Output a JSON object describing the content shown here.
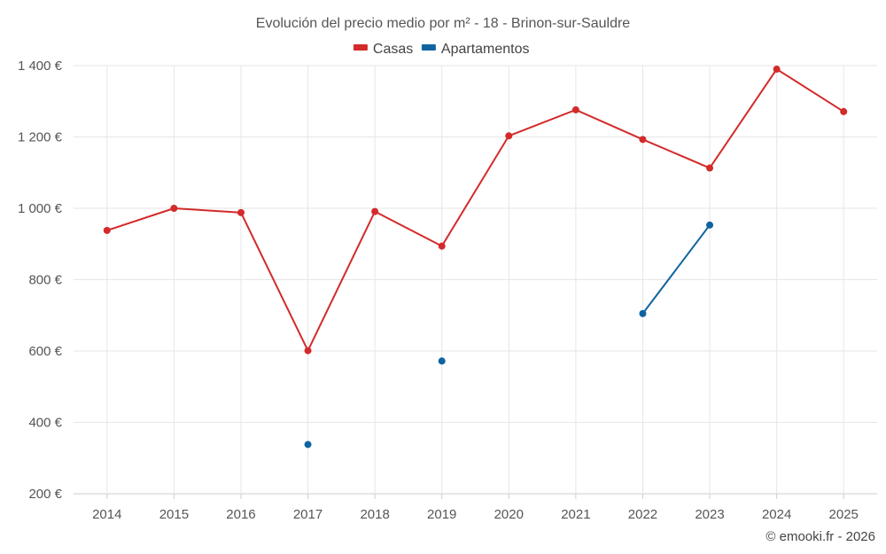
{
  "chart_data": {
    "type": "line",
    "title": "Evolución del precio medio por m² - 18 - Brinon-sur-Sauldre",
    "categories": [
      "2014",
      "2015",
      "2016",
      "2017",
      "2018",
      "2019",
      "2020",
      "2021",
      "2022",
      "2023",
      "2024",
      "2025"
    ],
    "ylim": [
      200,
      1400
    ],
    "yticks": [
      200,
      400,
      600,
      800,
      1000,
      1200,
      1400
    ],
    "ytick_labels": [
      "200 €",
      "400 €",
      "600 €",
      "800 €",
      "1 000 €",
      "1 200 €",
      "1 400 €"
    ],
    "grid": true,
    "legend_position": "top-center",
    "series": [
      {
        "name": "Casas",
        "color": "#d32a2a",
        "values": [
          938,
          1000,
          988,
          601,
          991,
          894,
          1203,
          1276,
          1193,
          1113,
          1390,
          1271
        ]
      },
      {
        "name": "Apartamentos",
        "color": "#0f64a0",
        "values": [
          null,
          null,
          null,
          338,
          null,
          572,
          null,
          null,
          705,
          953,
          null,
          null
        ]
      }
    ]
  },
  "credit": "© emooki.fr - 2026"
}
